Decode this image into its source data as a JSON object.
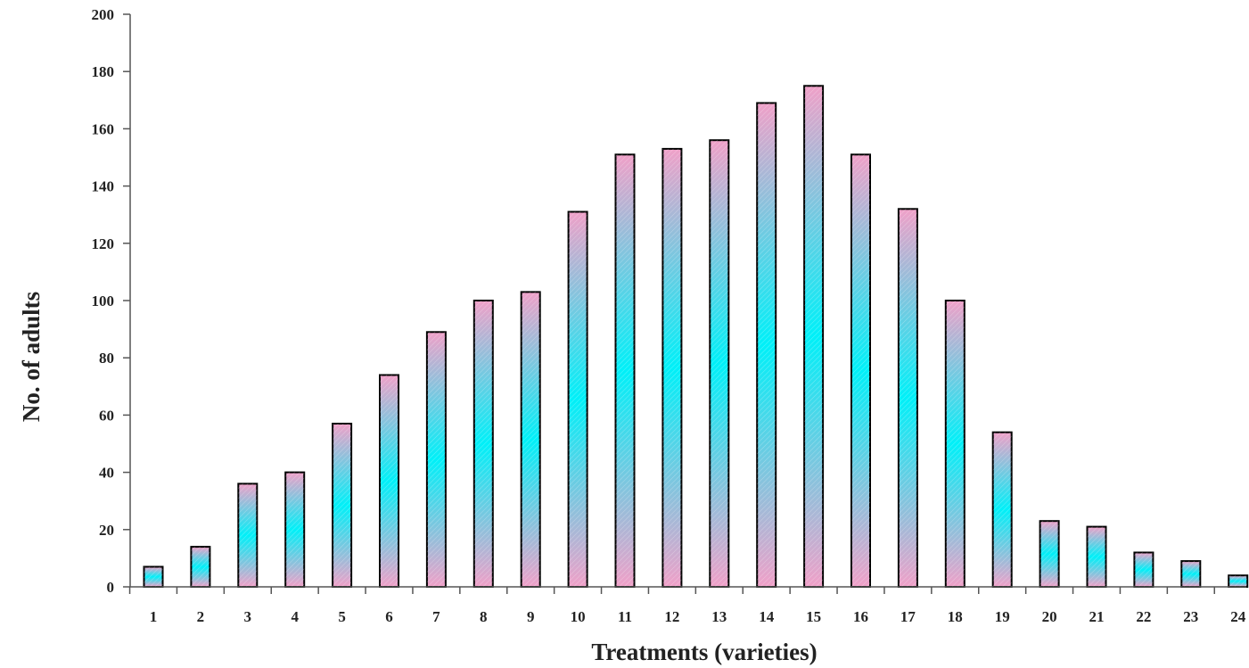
{
  "chart_data": {
    "type": "bar",
    "title": "",
    "xlabel": "Treatments (varieties)",
    "ylabel": "No. of adults",
    "categories": [
      "1",
      "2",
      "3",
      "4",
      "5",
      "6",
      "7",
      "8",
      "9",
      "10",
      "11",
      "12",
      "13",
      "14",
      "15",
      "16",
      "17",
      "18",
      "19",
      "20",
      "21",
      "22",
      "23",
      "24"
    ],
    "values": [
      7,
      14,
      36,
      40,
      57,
      74,
      89,
      100,
      103,
      131,
      151,
      153,
      156,
      169,
      175,
      151,
      132,
      100,
      54,
      23,
      21,
      12,
      9,
      4
    ],
    "ylim": [
      0,
      200
    ],
    "yticks": [
      0,
      20,
      40,
      60,
      80,
      100,
      120,
      140,
      160,
      180,
      200
    ],
    "grid": false,
    "legend": "none",
    "colors": {
      "pink": "#f0a0c8",
      "cyan": "#00f0f8",
      "outline": "#000000",
      "axis": "#555555"
    }
  }
}
